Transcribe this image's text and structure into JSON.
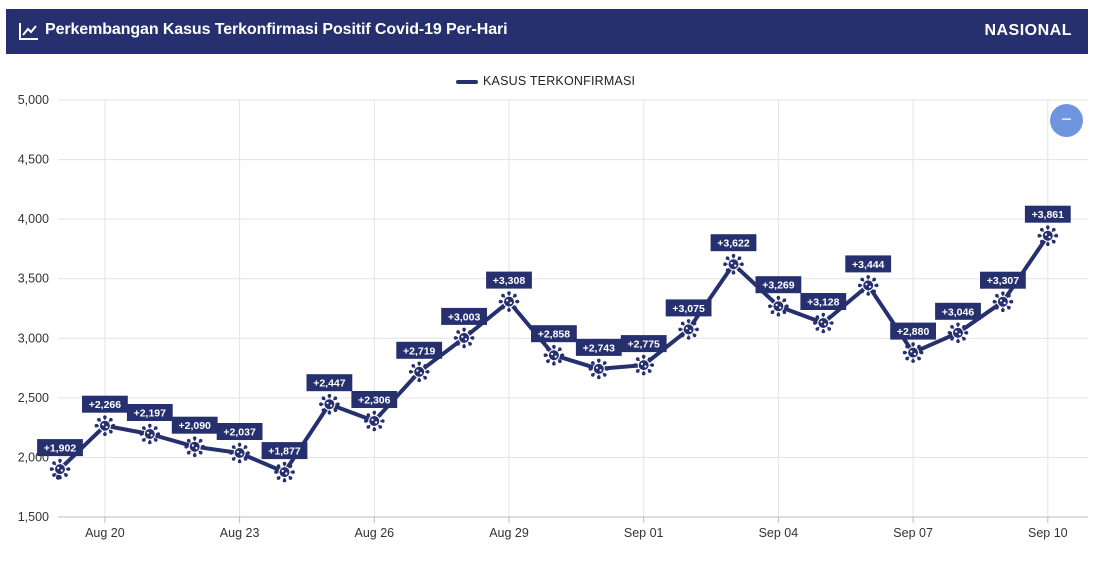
{
  "header": {
    "title": "Perkembangan Kasus Terkonfirmasi Positif Covid-19 Per-Hari",
    "region": "NASIONAL",
    "icon": "line-chart-icon"
  },
  "zoom_button": {
    "label": "−",
    "icon": "minus-icon"
  },
  "colors": {
    "header_bg": "#27306e",
    "series": "#27306e",
    "zoom": "#6f95de"
  },
  "chart_data": {
    "type": "line",
    "title": "Perkembangan Kasus Terkonfirmasi Positif Covid-19 Per-Hari",
    "xlabel": "",
    "ylabel": "",
    "legend_position": "top-center",
    "grid": true,
    "ylim": [
      1500,
      5000
    ],
    "yticks": [
      1500,
      2000,
      2500,
      3000,
      3500,
      4000,
      4500,
      5000
    ],
    "ytick_labels": [
      "1,500",
      "2,000",
      "2,500",
      "3,000",
      "3,500",
      "4,000",
      "4,500",
      "5,000"
    ],
    "x": [
      "Aug 19",
      "Aug 20",
      "Aug 21",
      "Aug 22",
      "Aug 23",
      "Aug 24",
      "Aug 25",
      "Aug 26",
      "Aug 27",
      "Aug 28",
      "Aug 29",
      "Aug 30",
      "Aug 31",
      "Sep 01",
      "Sep 02",
      "Sep 03",
      "Sep 04",
      "Sep 05",
      "Sep 06",
      "Sep 07",
      "Sep 08",
      "Sep 09",
      "Sep 10"
    ],
    "xtick_labels": [
      "Aug 20",
      "Aug 23",
      "Aug 26",
      "Aug 29",
      "Sep 01",
      "Sep 04",
      "Sep 07",
      "Sep 10"
    ],
    "series": [
      {
        "name": "KASUS TERKONFIRMASI",
        "values": [
          1902,
          2266,
          2197,
          2090,
          2037,
          1877,
          2447,
          2306,
          2719,
          3003,
          3308,
          2858,
          2743,
          2775,
          3075,
          3622,
          3269,
          3128,
          3444,
          2880,
          3046,
          3307,
          3861
        ],
        "labels": [
          "+1,902",
          "+2,266",
          "+2,197",
          "+2,090",
          "+2,037",
          "+1,877",
          "+2,447",
          "+2,306",
          "+2,719",
          "+3,003",
          "+3,308",
          "+2,858",
          "+2,743",
          "+2,775",
          "+3,075",
          "+3,622",
          "+3,269",
          "+3,128",
          "+3,444",
          "+2,880",
          "+3,046",
          "+3,307",
          "+3,861"
        ]
      }
    ]
  }
}
